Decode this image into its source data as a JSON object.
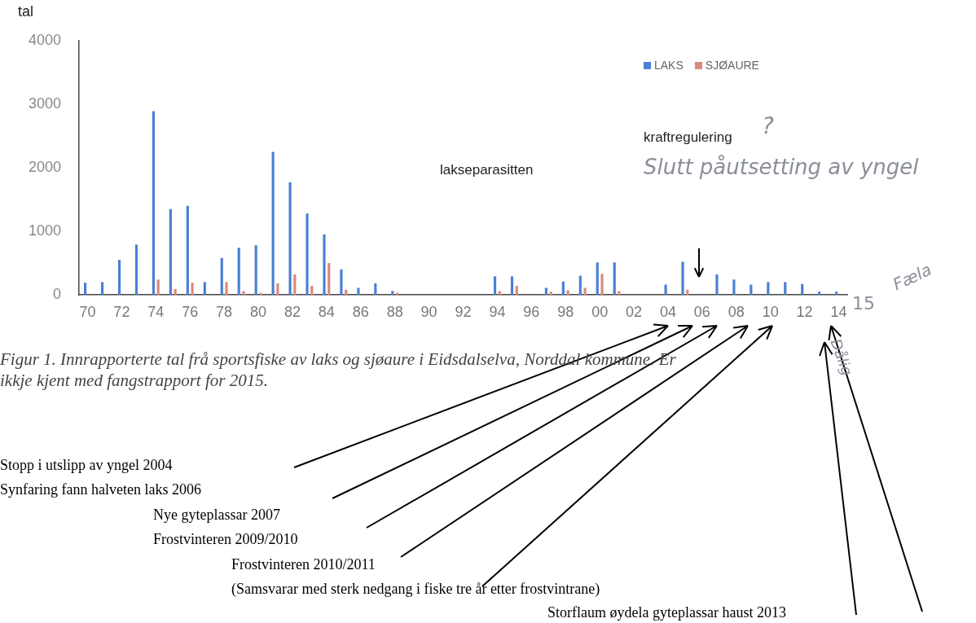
{
  "chart_data": {
    "type": "bar",
    "ylabel": "tal",
    "categories": [
      "70",
      null,
      "72",
      null,
      "74",
      null,
      "76",
      null,
      "78",
      null,
      "80",
      null,
      "82",
      null,
      "84",
      null,
      "86",
      null,
      "88",
      null,
      "90",
      null,
      "92",
      null,
      "94",
      null,
      "96",
      null,
      "98",
      null,
      "00",
      null,
      "02",
      null,
      "04",
      null,
      "06",
      null,
      "08",
      null,
      "10",
      null,
      "12",
      null,
      "14"
    ],
    "series": [
      {
        "name": "LAKS",
        "color": "#4a7fd4",
        "values": [
          190,
          200,
          550,
          790,
          2890,
          1350,
          1400,
          200,
          580,
          740,
          780,
          2250,
          1770,
          1280,
          950,
          400,
          110,
          180,
          60,
          0,
          0,
          0,
          0,
          0,
          290,
          290,
          0,
          110,
          210,
          300,
          510,
          510,
          0,
          0,
          160,
          520,
          0,
          320,
          240,
          160,
          200,
          200,
          170,
          50,
          50
        ]
      },
      {
        "name": "SJØAURE",
        "color": "#d98a7c",
        "values": [
          0,
          0,
          0,
          0,
          240,
          90,
          190,
          0,
          200,
          60,
          30,
          180,
          320,
          140,
          500,
          80,
          0,
          0,
          30,
          0,
          0,
          0,
          0,
          0,
          60,
          140,
          0,
          50,
          70,
          110,
          330,
          60,
          0,
          0,
          0,
          80,
          0,
          0,
          0,
          0,
          0,
          0,
          0,
          0,
          0
        ]
      }
    ],
    "ylim": [
      0,
      4000
    ],
    "yticks": [
      0,
      1000,
      2000,
      3000,
      4000
    ],
    "grid": false,
    "legend": "top right",
    "annotations": [
      "lakseparasitten",
      "kraftregulering",
      "?",
      "Slutt påutsetting av yngel",
      "Fæla",
      "15",
      "Dålig",
      "Figur 1. Innrapporterte tal frå sportsfiske av laks og sjøaure i Eidsdalselva, Norddal kommune. Er ikkje kjent med fangstrapport for 2015.",
      "Stopp i utslipp av yngel 2004",
      "Synfaring fann halveten laks 2006",
      "Nye gyteplassar 2007",
      "Frostvinteren 2009/2010",
      "Frostvinteren 2010/2011",
      "(Samsvarar med sterk nedgang i fiske tre år etter frostvintrane)",
      "Storflaum øydela gyteplassar haust 2013"
    ]
  }
}
